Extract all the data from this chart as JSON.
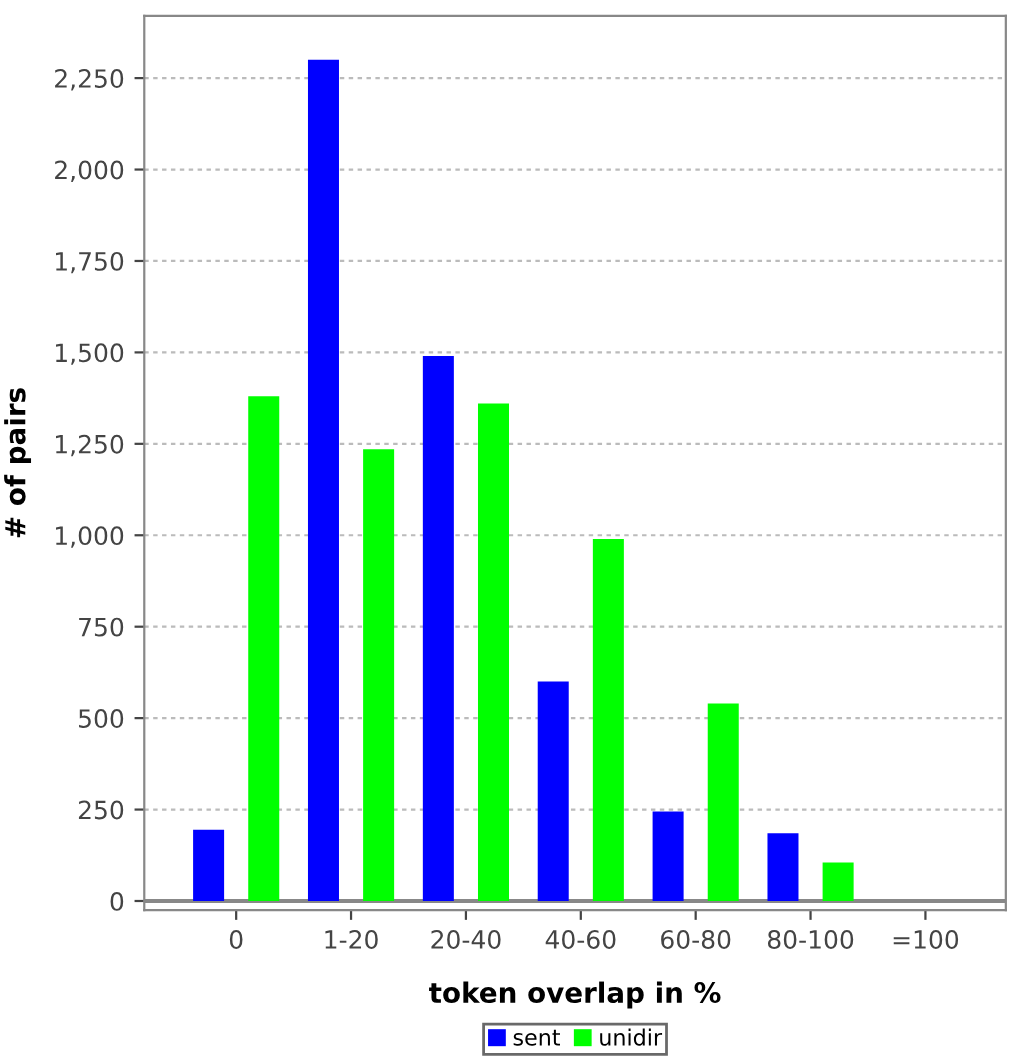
{
  "chart_data": {
    "type": "bar",
    "xlabel": "token overlap in %",
    "ylabel": "# of pairs",
    "categories": [
      "0",
      "1-20",
      "20-40",
      "40-60",
      "60-80",
      "80-100",
      "=100"
    ],
    "series": [
      {
        "name": "sent",
        "color": "#0000ff",
        "values": [
          195,
          2300,
          1490,
          600,
          245,
          185,
          0
        ]
      },
      {
        "name": "unidir",
        "color": "#00ff00",
        "values": [
          1380,
          1235,
          1360,
          990,
          540,
          105,
          0
        ]
      }
    ],
    "ylim": [
      -25,
      2420
    ],
    "yticks": [
      {
        "value": 0,
        "label": "0"
      },
      {
        "value": 250,
        "label": "250"
      },
      {
        "value": 500,
        "label": "500"
      },
      {
        "value": 750,
        "label": "750"
      },
      {
        "value": 1000,
        "label": "1,000"
      },
      {
        "value": 1250,
        "label": "1,250"
      },
      {
        "value": 1500,
        "label": "1,500"
      },
      {
        "value": 1750,
        "label": "1,750"
      },
      {
        "value": 2000,
        "label": "2,000"
      },
      {
        "value": 2250,
        "label": "2,250"
      }
    ],
    "grid": "y",
    "legend": "bottom"
  }
}
